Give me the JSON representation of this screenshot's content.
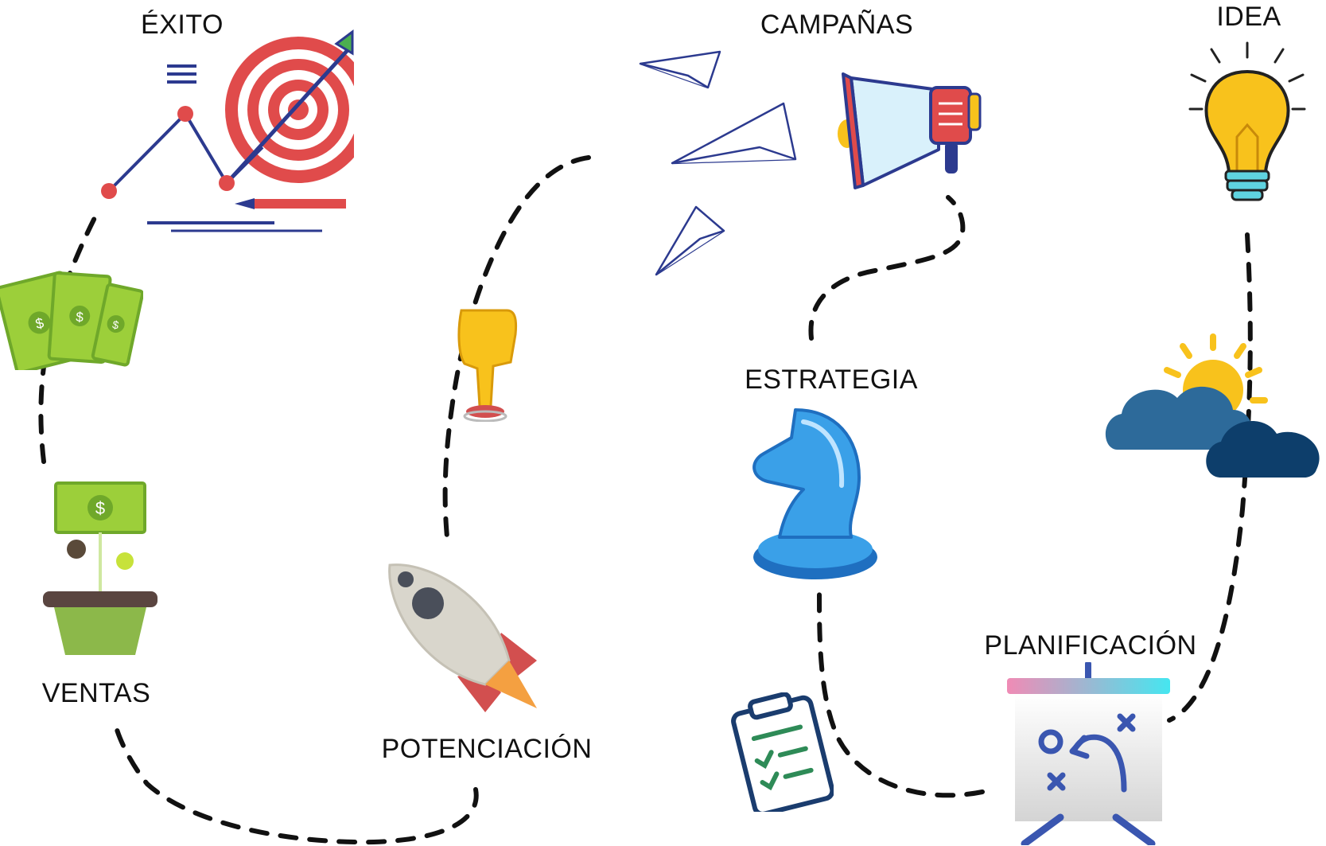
{
  "colors": {
    "path": "#111111",
    "target_red": "#e04b4b",
    "navy": "#2c3a8f",
    "money_green": "#9ccf3a",
    "money_dark": "#6fa82a",
    "pot_green": "#8cb84a",
    "rocket_red": "#d24f4f",
    "gold": "#f8c21c",
    "cloud_dark": "#0d3e6b",
    "cloud_mid": "#2d6a9a",
    "chess_blue": "#3aa0e8"
  },
  "steps": [
    {
      "id": "idea",
      "label": "IDEA",
      "icon": "lightbulb-icon"
    },
    {
      "id": "planificacion",
      "label": "PLANIFICACIÓN",
      "icon": "strategy-board-icon"
    },
    {
      "id": "estrategia",
      "label": "ESTRATEGIA",
      "icon": "chess-knight-icon"
    },
    {
      "id": "campanas",
      "label": "CAMPAÑAS",
      "icon": "megaphone-icon"
    },
    {
      "id": "potenciacion",
      "label": "POTENCIACIÓN",
      "icon": "rocket-icon"
    },
    {
      "id": "ventas",
      "label": "VENTAS",
      "icon": "money-plant-icon"
    },
    {
      "id": "exito",
      "label": "ÉXITO",
      "icon": "target-growth-icon"
    }
  ],
  "decor_icons": [
    "weather-cloud-sun-icon",
    "clipboard-checklist-icon",
    "paper-plane-icon",
    "pointing-hand-button-icon",
    "money-bills-icon"
  ]
}
